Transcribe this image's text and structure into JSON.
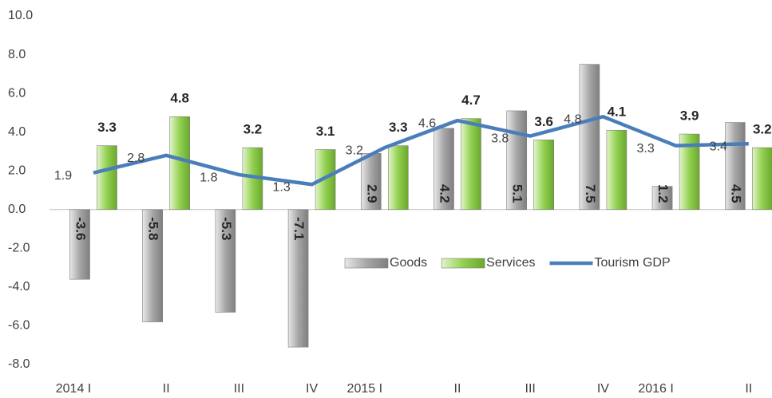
{
  "chart_data": {
    "type": "bar-line",
    "categories": [
      "2014 I",
      "II",
      "III",
      "IV",
      "2015 I",
      "II",
      "III",
      "IV",
      "2016 I",
      "II"
    ],
    "series": [
      {
        "name": "Goods",
        "type": "bar",
        "color": "#a6a6a6",
        "values": [
          -3.6,
          -5.8,
          -5.3,
          -7.1,
          2.9,
          4.2,
          5.1,
          7.5,
          1.2,
          4.5
        ]
      },
      {
        "name": "Services",
        "type": "bar",
        "color": "#92d050",
        "values": [
          3.3,
          4.8,
          3.2,
          3.1,
          3.3,
          4.7,
          3.6,
          4.1,
          3.9,
          3.2
        ]
      },
      {
        "name": "Tourism GDP",
        "type": "line",
        "color": "#4a7ebb",
        "values": [
          1.9,
          2.8,
          1.8,
          1.3,
          3.2,
          4.6,
          3.8,
          4.8,
          3.3,
          3.4
        ]
      }
    ],
    "ylim": [
      -8,
      10
    ],
    "yticks": [
      {
        "value": -8,
        "label": "-8.0"
      },
      {
        "value": -6,
        "label": "-6.0"
      },
      {
        "value": -4,
        "label": "-4.0"
      },
      {
        "value": -2,
        "label": "-2.0"
      },
      {
        "value": 0,
        "label": "0.0"
      },
      {
        "value": 2,
        "label": "2.0"
      },
      {
        "value": 4,
        "label": "4.0"
      },
      {
        "value": 6,
        "label": "6.0"
      },
      {
        "value": 8,
        "label": "8.0"
      },
      {
        "value": 10,
        "label": "10.0"
      }
    ],
    "grid": false
  }
}
